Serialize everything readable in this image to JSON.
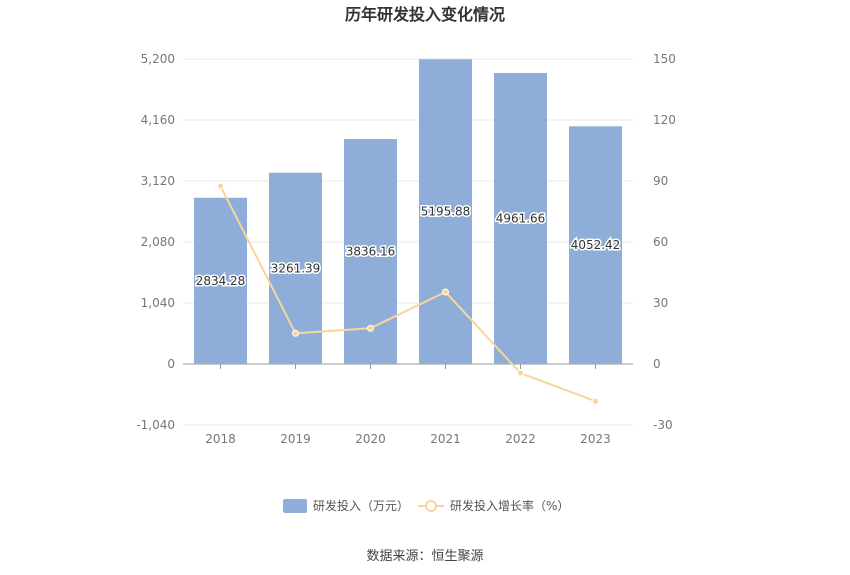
{
  "chart_data": {
    "type": "bar",
    "title": "历年研发投入变化情况",
    "categories": [
      "2018",
      "2019",
      "2020",
      "2021",
      "2022",
      "2023"
    ],
    "series": [
      {
        "name": "研发投入（万元）",
        "type": "bar",
        "axis": "left",
        "color": "#8eadd9",
        "values": [
          2834.28,
          3261.39,
          3836.16,
          5195.88,
          4961.66,
          4052.42
        ],
        "labels": [
          "2834.28",
          "3261.39",
          "3836.16",
          "5195.88",
          "4961.66",
          "4052.42"
        ]
      },
      {
        "name": "研发投入增长率（%）",
        "type": "line",
        "axis": "right",
        "color": "#f8d69b",
        "values": [
          87.5,
          15.1,
          17.6,
          35.4,
          -4.5,
          -18.3
        ]
      }
    ],
    "left_axis": {
      "ylim": [
        -1040,
        5200
      ],
      "ticks": [
        -1040,
        0,
        1040,
        2080,
        3120,
        4160,
        5200
      ],
      "tick_labels": [
        "-1,040",
        "0",
        "1,040",
        "2,080",
        "3,120",
        "4,160",
        "5,200"
      ]
    },
    "right_axis": {
      "ylim": [
        -30,
        150
      ],
      "tick_labels": [
        "-30",
        "0",
        "30",
        "60",
        "90",
        "120",
        "150"
      ]
    },
    "grid": true,
    "legend": "bottom-center",
    "source": "数据来源：恒生聚源"
  }
}
